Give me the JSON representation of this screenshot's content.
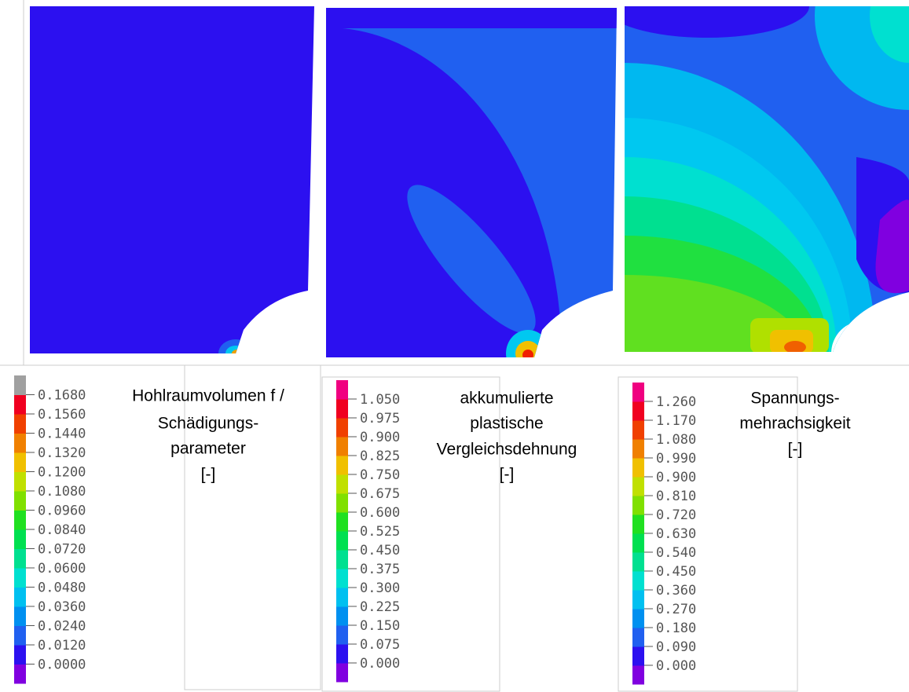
{
  "panels": [
    {
      "title_lines": [
        "Hohlraumvolumen  f /",
        "Schädigungs-",
        "parameter",
        "[-]"
      ],
      "legend_labels": [
        "0.1680",
        "0.1560",
        "0.1440",
        "0.1320",
        "0.1200",
        "0.1080",
        "0.0960",
        "0.0840",
        "0.0720",
        "0.0600",
        "0.0480",
        "0.0360",
        "0.0240",
        "0.0120",
        "0.0000"
      ]
    },
    {
      "title_lines": [
        "akkumulierte",
        "plastische",
        "Vergleichsdehnung",
        "[-]"
      ],
      "legend_labels": [
        "1.050",
        "0.975",
        "0.900",
        "0.825",
        "0.750",
        "0.675",
        "0.600",
        "0.525",
        "0.450",
        "0.375",
        "0.300",
        "0.225",
        "0.150",
        "0.075",
        "0.000"
      ]
    },
    {
      "title_lines": [
        "Spannungs-",
        "mehrachsigkeit",
        "[-]"
      ],
      "legend_labels": [
        "1.260",
        "1.170",
        "1.080",
        "0.990",
        "0.900",
        "0.810",
        "0.720",
        "0.630",
        "0.540",
        "0.450",
        "0.360",
        "0.270",
        "0.180",
        "0.090",
        "0.000"
      ]
    }
  ]
}
